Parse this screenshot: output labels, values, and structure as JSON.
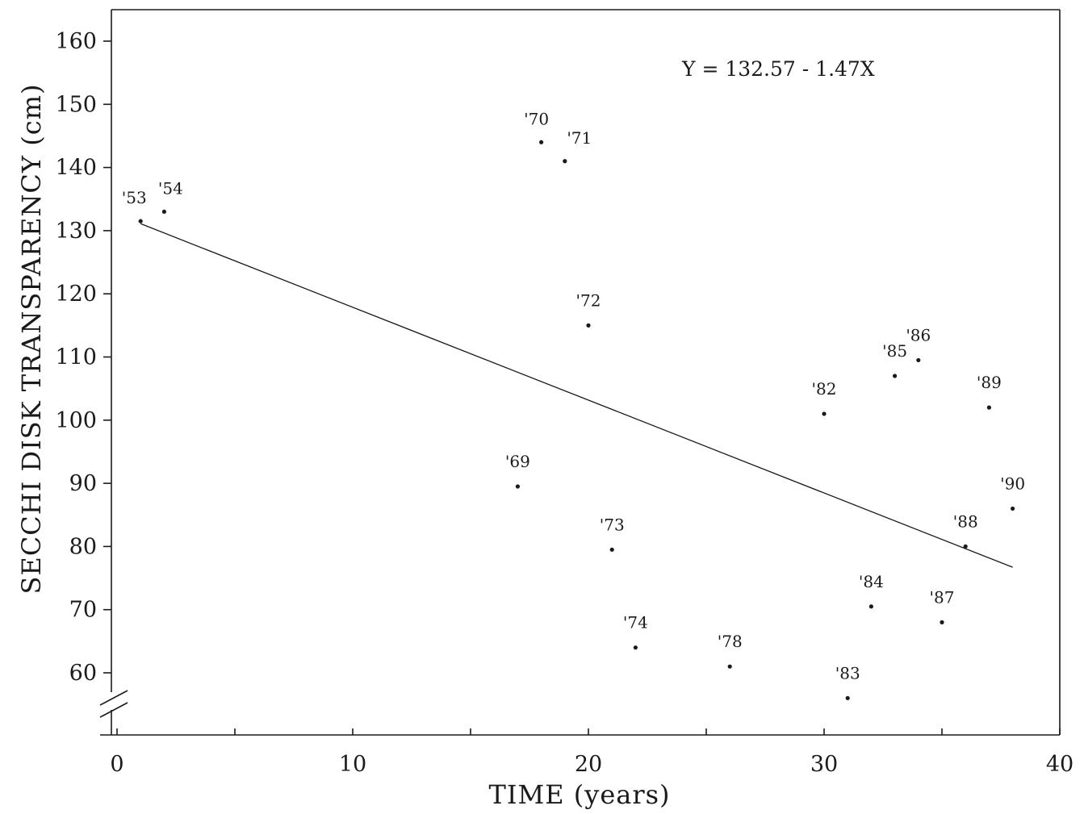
{
  "chart_data": {
    "type": "scatter",
    "xlabel": "TIME (years)",
    "ylabel": "SECCHI DISK TRANSPARENCY (cm)",
    "xlim": [
      0,
      40
    ],
    "ylim": [
      50,
      165
    ],
    "x_ticks": [
      0,
      10,
      20,
      30,
      40
    ],
    "y_ticks": [
      60,
      70,
      80,
      90,
      100,
      110,
      120,
      130,
      140,
      150,
      160
    ],
    "y_axis_break": true,
    "grid": false,
    "annotation": "Y = 132.57 - 1.47X",
    "regression": {
      "intercept": 132.57,
      "slope": -1.47,
      "x_range": [
        1,
        38
      ]
    },
    "points": [
      {
        "label": "'53",
        "x": 1,
        "y": 131.5
      },
      {
        "label": "'54",
        "x": 2,
        "y": 133
      },
      {
        "label": "'69",
        "x": 17,
        "y": 89.5
      },
      {
        "label": "'70",
        "x": 18,
        "y": 144
      },
      {
        "label": "'71",
        "x": 19,
        "y": 141
      },
      {
        "label": "'72",
        "x": 20,
        "y": 115
      },
      {
        "label": "'73",
        "x": 21,
        "y": 79.5
      },
      {
        "label": "'74",
        "x": 22,
        "y": 64
      },
      {
        "label": "'78",
        "x": 26,
        "y": 61
      },
      {
        "label": "'82",
        "x": 30,
        "y": 101
      },
      {
        "label": "'83",
        "x": 31,
        "y": 56
      },
      {
        "label": "'84",
        "x": 32,
        "y": 70.5
      },
      {
        "label": "'85",
        "x": 33,
        "y": 107
      },
      {
        "label": "'86",
        "x": 34,
        "y": 109.5
      },
      {
        "label": "'87",
        "x": 35,
        "y": 68
      },
      {
        "label": "'88",
        "x": 36,
        "y": 80
      },
      {
        "label": "'89",
        "x": 37,
        "y": 102
      },
      {
        "label": "'90",
        "x": 38,
        "y": 86
      }
    ]
  }
}
